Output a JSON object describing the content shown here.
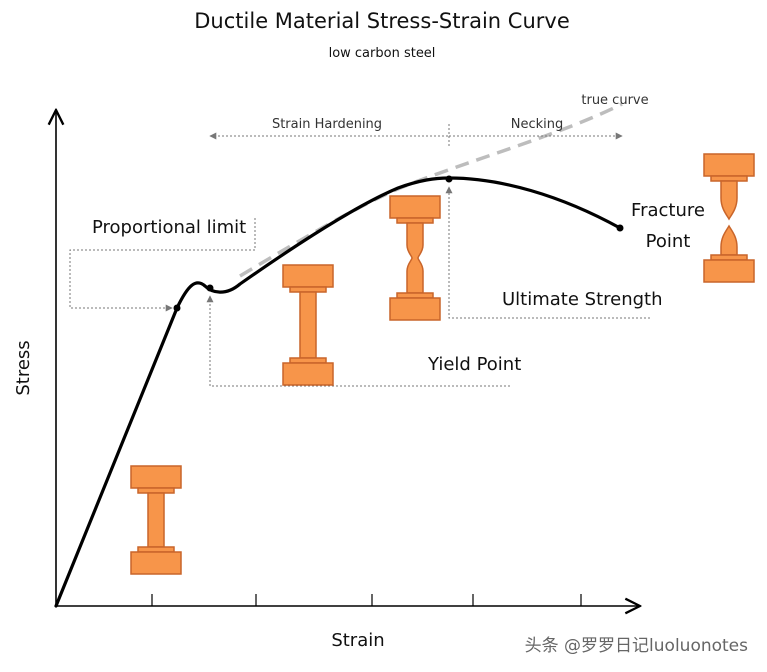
{
  "title": "Ductile Material Stress-Strain Curve",
  "subtitle": "low carbon steel",
  "axes": {
    "x_label": "Strain",
    "y_label": "Stress"
  },
  "annotations": {
    "proportional_limit": "Proportional limit",
    "yield_point": "Yield Point",
    "ultimate_strength": "Ultimate Strength",
    "fracture_line1": "Fracture",
    "fracture_line2": "Point",
    "strain_hardening": "Strain Hardening",
    "necking": "Necking",
    "true_curve": "true curve"
  },
  "watermark": "头条 @罗罗日记luoluonotes",
  "colors": {
    "curve": "#000000",
    "true_curve": "#bdbdbd",
    "specimen_fill": "#f7954a",
    "specimen_stroke": "#c9652a",
    "guide": "#666666"
  },
  "specimens": [
    "normal",
    "normal",
    "necked",
    "fractured"
  ]
}
